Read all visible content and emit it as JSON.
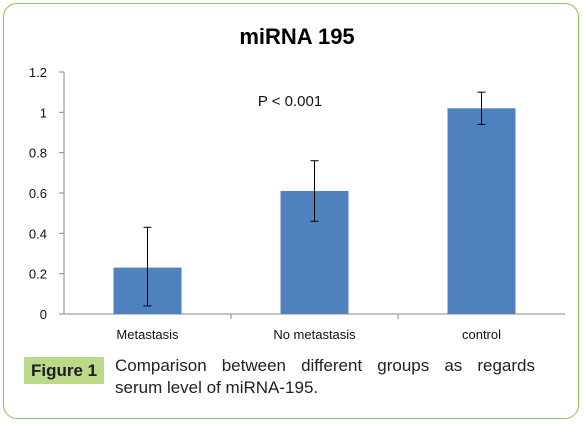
{
  "caption": {
    "label": "Figure 1",
    "text": "Comparison between different groups as regards serum level of miRNA-195."
  },
  "chart_data": {
    "type": "bar",
    "title": "miRNA 195",
    "xlabel": "",
    "ylabel": "",
    "categories": [
      "Metastasis",
      "No metastasis",
      "control"
    ],
    "values": [
      0.23,
      0.61,
      1.02
    ],
    "error_low": [
      0.04,
      0.46,
      0.94
    ],
    "error_high": [
      0.43,
      0.76,
      1.1
    ],
    "ylim": [
      0,
      1.2
    ],
    "yticks": [
      "0",
      "0.2",
      "0.4",
      "0.6",
      "0.8",
      "1",
      "1.2"
    ],
    "ytick_values": [
      0,
      0.2,
      0.4,
      0.6,
      0.8,
      1,
      1.2
    ],
    "annotation": "P < 0.001",
    "grid": false,
    "legend": "none",
    "bar_color": "#4f81bd"
  }
}
